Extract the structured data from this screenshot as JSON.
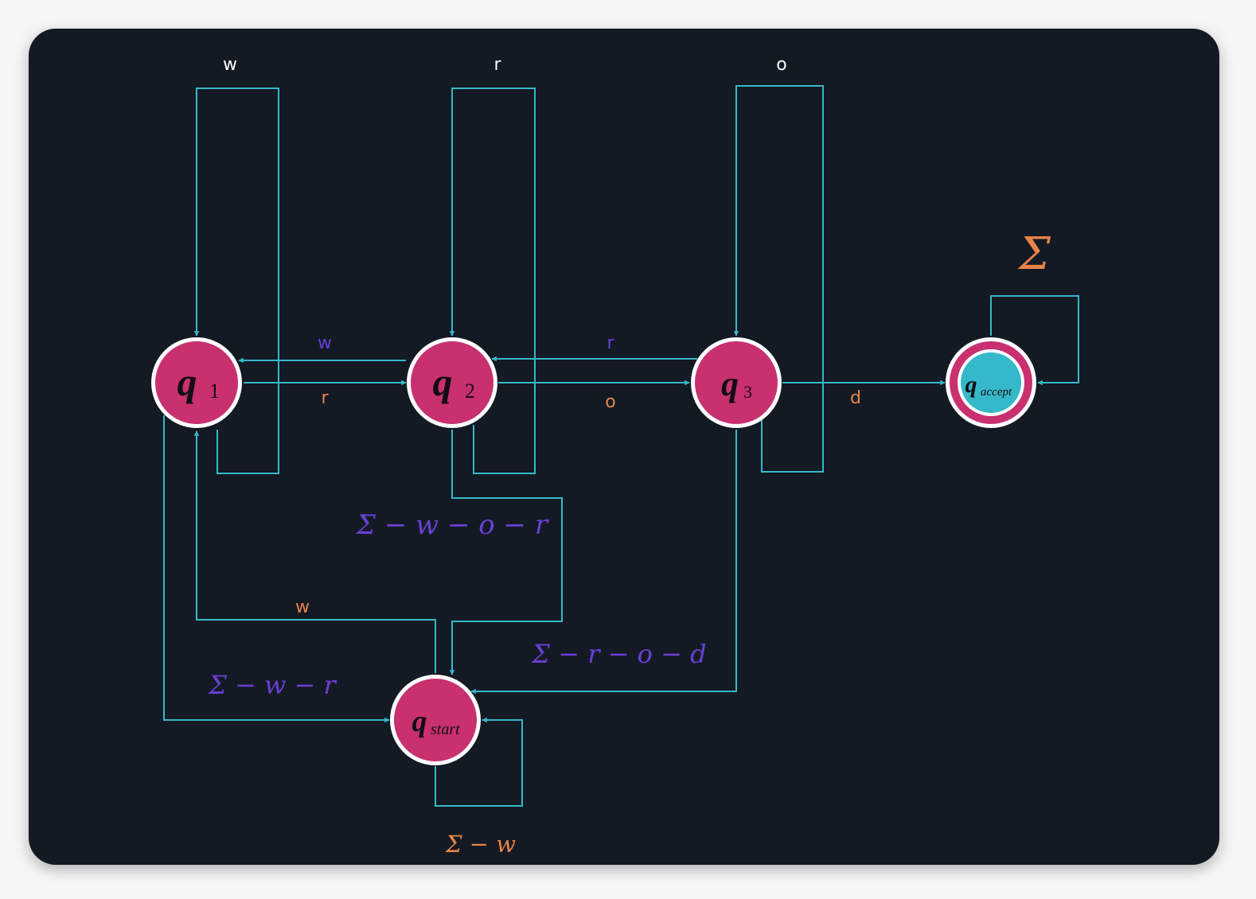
{
  "colors": {
    "background": "#131a24",
    "edge": "#35b8c9",
    "state_fill": "#c8306f",
    "accept_fill": "#35b8c9",
    "state_ring": "#ffffff",
    "label_white": "#ffffff",
    "label_orange": "#e8834a",
    "label_purple": "#6a3fd6"
  },
  "states": {
    "q1": {
      "letter": "q",
      "sub": "1"
    },
    "q2": {
      "letter": "q",
      "sub": "2"
    },
    "q3": {
      "letter": "q",
      "sub": "3"
    },
    "qstart": {
      "letter": "q",
      "sub": "start"
    },
    "qaccept": {
      "letter": "q",
      "sub": "accept"
    }
  },
  "labels": {
    "loop_q1_top": "w",
    "loop_q2_top": "r",
    "loop_q3_top": "o",
    "q2_to_q1": "w",
    "q1_to_q2": "r",
    "q3_to_q2": "r",
    "q2_to_q3": "o",
    "q3_to_accept": "d",
    "accept_loop": "Σ",
    "q2_to_start": "Σ − w − o − r",
    "start_to_q1": "w",
    "q3_to_start": "Σ − r − o − d",
    "q1_to_start": "Σ − w − r",
    "start_loop": "Σ − w"
  }
}
